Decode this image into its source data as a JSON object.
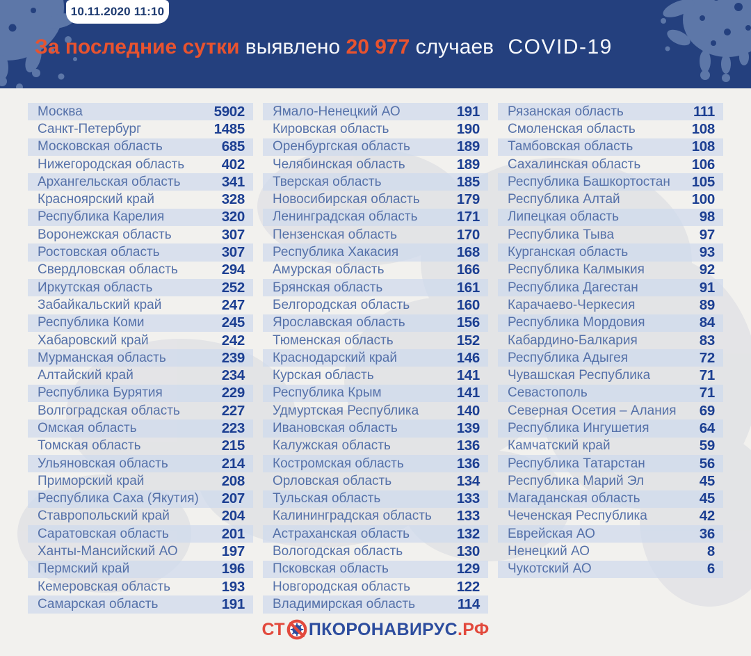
{
  "badge": {
    "datetime": "10.11.2020 11:10"
  },
  "header": {
    "title_highlight": "За последние сутки",
    "title_mid": "выявлено",
    "cases_count": "20 977",
    "title_tail": "случаев",
    "disease_label": "COVID-19"
  },
  "footer": {
    "logo_prefix": "СТ",
    "logo_icon": "no-virus-icon",
    "logo_main": "ПКОРОНАВИРУС",
    "logo_tld": ".РФ"
  },
  "colors": {
    "header_bg": "#24407e",
    "accent_orange": "#e8532f",
    "logo_red": "#e2493c",
    "region_name_blue": "#5571a9",
    "value_blue": "#1c3f92",
    "stripe": "#e4e9f3",
    "panel_bg": "#f2f1ee",
    "splat_blue": "#5d77a8"
  },
  "chart_data": {
    "type": "table",
    "title": "За последние сутки выявлено 20 977 случаев COVID-19",
    "timestamp": "10.11.2020 11:10",
    "total_new_cases": 20977,
    "columns": [
      [
        {
          "region": "Москва",
          "value": 5902
        },
        {
          "region": "Санкт-Петербург",
          "value": 1485
        },
        {
          "region": "Московская область",
          "value": 685
        },
        {
          "region": "Нижегородская область",
          "value": 402
        },
        {
          "region": "Архангельская область",
          "value": 341
        },
        {
          "region": "Красноярский край",
          "value": 328
        },
        {
          "region": "Республика Карелия",
          "value": 320
        },
        {
          "region": "Воронежская область",
          "value": 307
        },
        {
          "region": "Ростовская область",
          "value": 307
        },
        {
          "region": "Свердловская область",
          "value": 294
        },
        {
          "region": "Иркутская область",
          "value": 252
        },
        {
          "region": "Забайкальский край",
          "value": 247
        },
        {
          "region": "Республика Коми",
          "value": 245
        },
        {
          "region": "Хабаровский край",
          "value": 242
        },
        {
          "region": "Мурманская область",
          "value": 239
        },
        {
          "region": "Алтайский край",
          "value": 234
        },
        {
          "region": "Республика Бурятия",
          "value": 229
        },
        {
          "region": "Волгоградская область",
          "value": 227
        },
        {
          "region": "Омская область",
          "value": 223
        },
        {
          "region": "Томская область",
          "value": 215
        },
        {
          "region": "Ульяновская область",
          "value": 214
        },
        {
          "region": "Приморский край",
          "value": 208
        },
        {
          "region": "Республика Саха (Якутия)",
          "value": 207
        },
        {
          "region": "Ставропольский край",
          "value": 204
        },
        {
          "region": "Саратовская область",
          "value": 201
        },
        {
          "region": "Ханты-Мансийский АО",
          "value": 197
        },
        {
          "region": "Пермский край",
          "value": 196
        },
        {
          "region": "Кемеровская область",
          "value": 193
        },
        {
          "region": "Самарская область",
          "value": 191
        }
      ],
      [
        {
          "region": "Ямало-Ненецкий АО",
          "value": 191
        },
        {
          "region": "Кировская область",
          "value": 190
        },
        {
          "region": "Оренбургская область",
          "value": 189
        },
        {
          "region": "Челябинская область",
          "value": 189
        },
        {
          "region": "Тверская область",
          "value": 185
        },
        {
          "region": "Новосибирская область",
          "value": 179
        },
        {
          "region": "Ленинградская область",
          "value": 171
        },
        {
          "region": "Пензенская область",
          "value": 170
        },
        {
          "region": "Республика Хакасия",
          "value": 168
        },
        {
          "region": "Амурская область",
          "value": 166
        },
        {
          "region": "Брянская область",
          "value": 161
        },
        {
          "region": "Белгородская область",
          "value": 160
        },
        {
          "region": "Ярославская область",
          "value": 156
        },
        {
          "region": "Тюменская область",
          "value": 152
        },
        {
          "region": "Краснодарский край",
          "value": 146
        },
        {
          "region": "Курская область",
          "value": 141
        },
        {
          "region": "Республика Крым",
          "value": 141
        },
        {
          "region": "Удмуртская Республика",
          "value": 140
        },
        {
          "region": "Ивановская область",
          "value": 139
        },
        {
          "region": "Калужская область",
          "value": 136
        },
        {
          "region": "Костромская область",
          "value": 136
        },
        {
          "region": "Орловская область",
          "value": 134
        },
        {
          "region": "Тульская область",
          "value": 133
        },
        {
          "region": "Калининградская область",
          "value": 133
        },
        {
          "region": "Астраханская область",
          "value": 132
        },
        {
          "region": "Вологодская область",
          "value": 130
        },
        {
          "region": "Псковская область",
          "value": 129
        },
        {
          "region": "Новгородская область",
          "value": 122
        },
        {
          "region": "Владимирская область",
          "value": 114
        }
      ],
      [
        {
          "region": "Рязанская область",
          "value": 111
        },
        {
          "region": "Смоленская область",
          "value": 108
        },
        {
          "region": "Тамбовская область",
          "value": 108
        },
        {
          "region": "Сахалинская область",
          "value": 106
        },
        {
          "region": "Республика Башкортостан",
          "value": 105
        },
        {
          "region": "Республика Алтай",
          "value": 100
        },
        {
          "region": "Липецкая область",
          "value": 98
        },
        {
          "region": "Республика Тыва",
          "value": 97
        },
        {
          "region": "Курганская область",
          "value": 93
        },
        {
          "region": "Республика Калмыкия",
          "value": 92
        },
        {
          "region": "Республика Дагестан",
          "value": 91
        },
        {
          "region": "Карачаево-Черкесия",
          "value": 89
        },
        {
          "region": "Республика Мордовия",
          "value": 84
        },
        {
          "region": "Кабардино-Балкария",
          "value": 83
        },
        {
          "region": "Республика Адыгея",
          "value": 72
        },
        {
          "region": "Чувашская Республика",
          "value": 71
        },
        {
          "region": "Севастополь",
          "value": 71
        },
        {
          "region": "Северная Осетия – Алания",
          "value": 69
        },
        {
          "region": "Республика Ингушетия",
          "value": 64
        },
        {
          "region": "Камчатский край",
          "value": 59
        },
        {
          "region": "Республика Татарстан",
          "value": 56
        },
        {
          "region": "Республика Марий Эл",
          "value": 45
        },
        {
          "region": "Магаданская область",
          "value": 45
        },
        {
          "region": "Чеченская Республика",
          "value": 42
        },
        {
          "region": "Еврейская АО",
          "value": 36
        },
        {
          "region": "Ненецкий АО",
          "value": 8
        },
        {
          "region": "Чукотский АО",
          "value": 6
        }
      ]
    ]
  }
}
